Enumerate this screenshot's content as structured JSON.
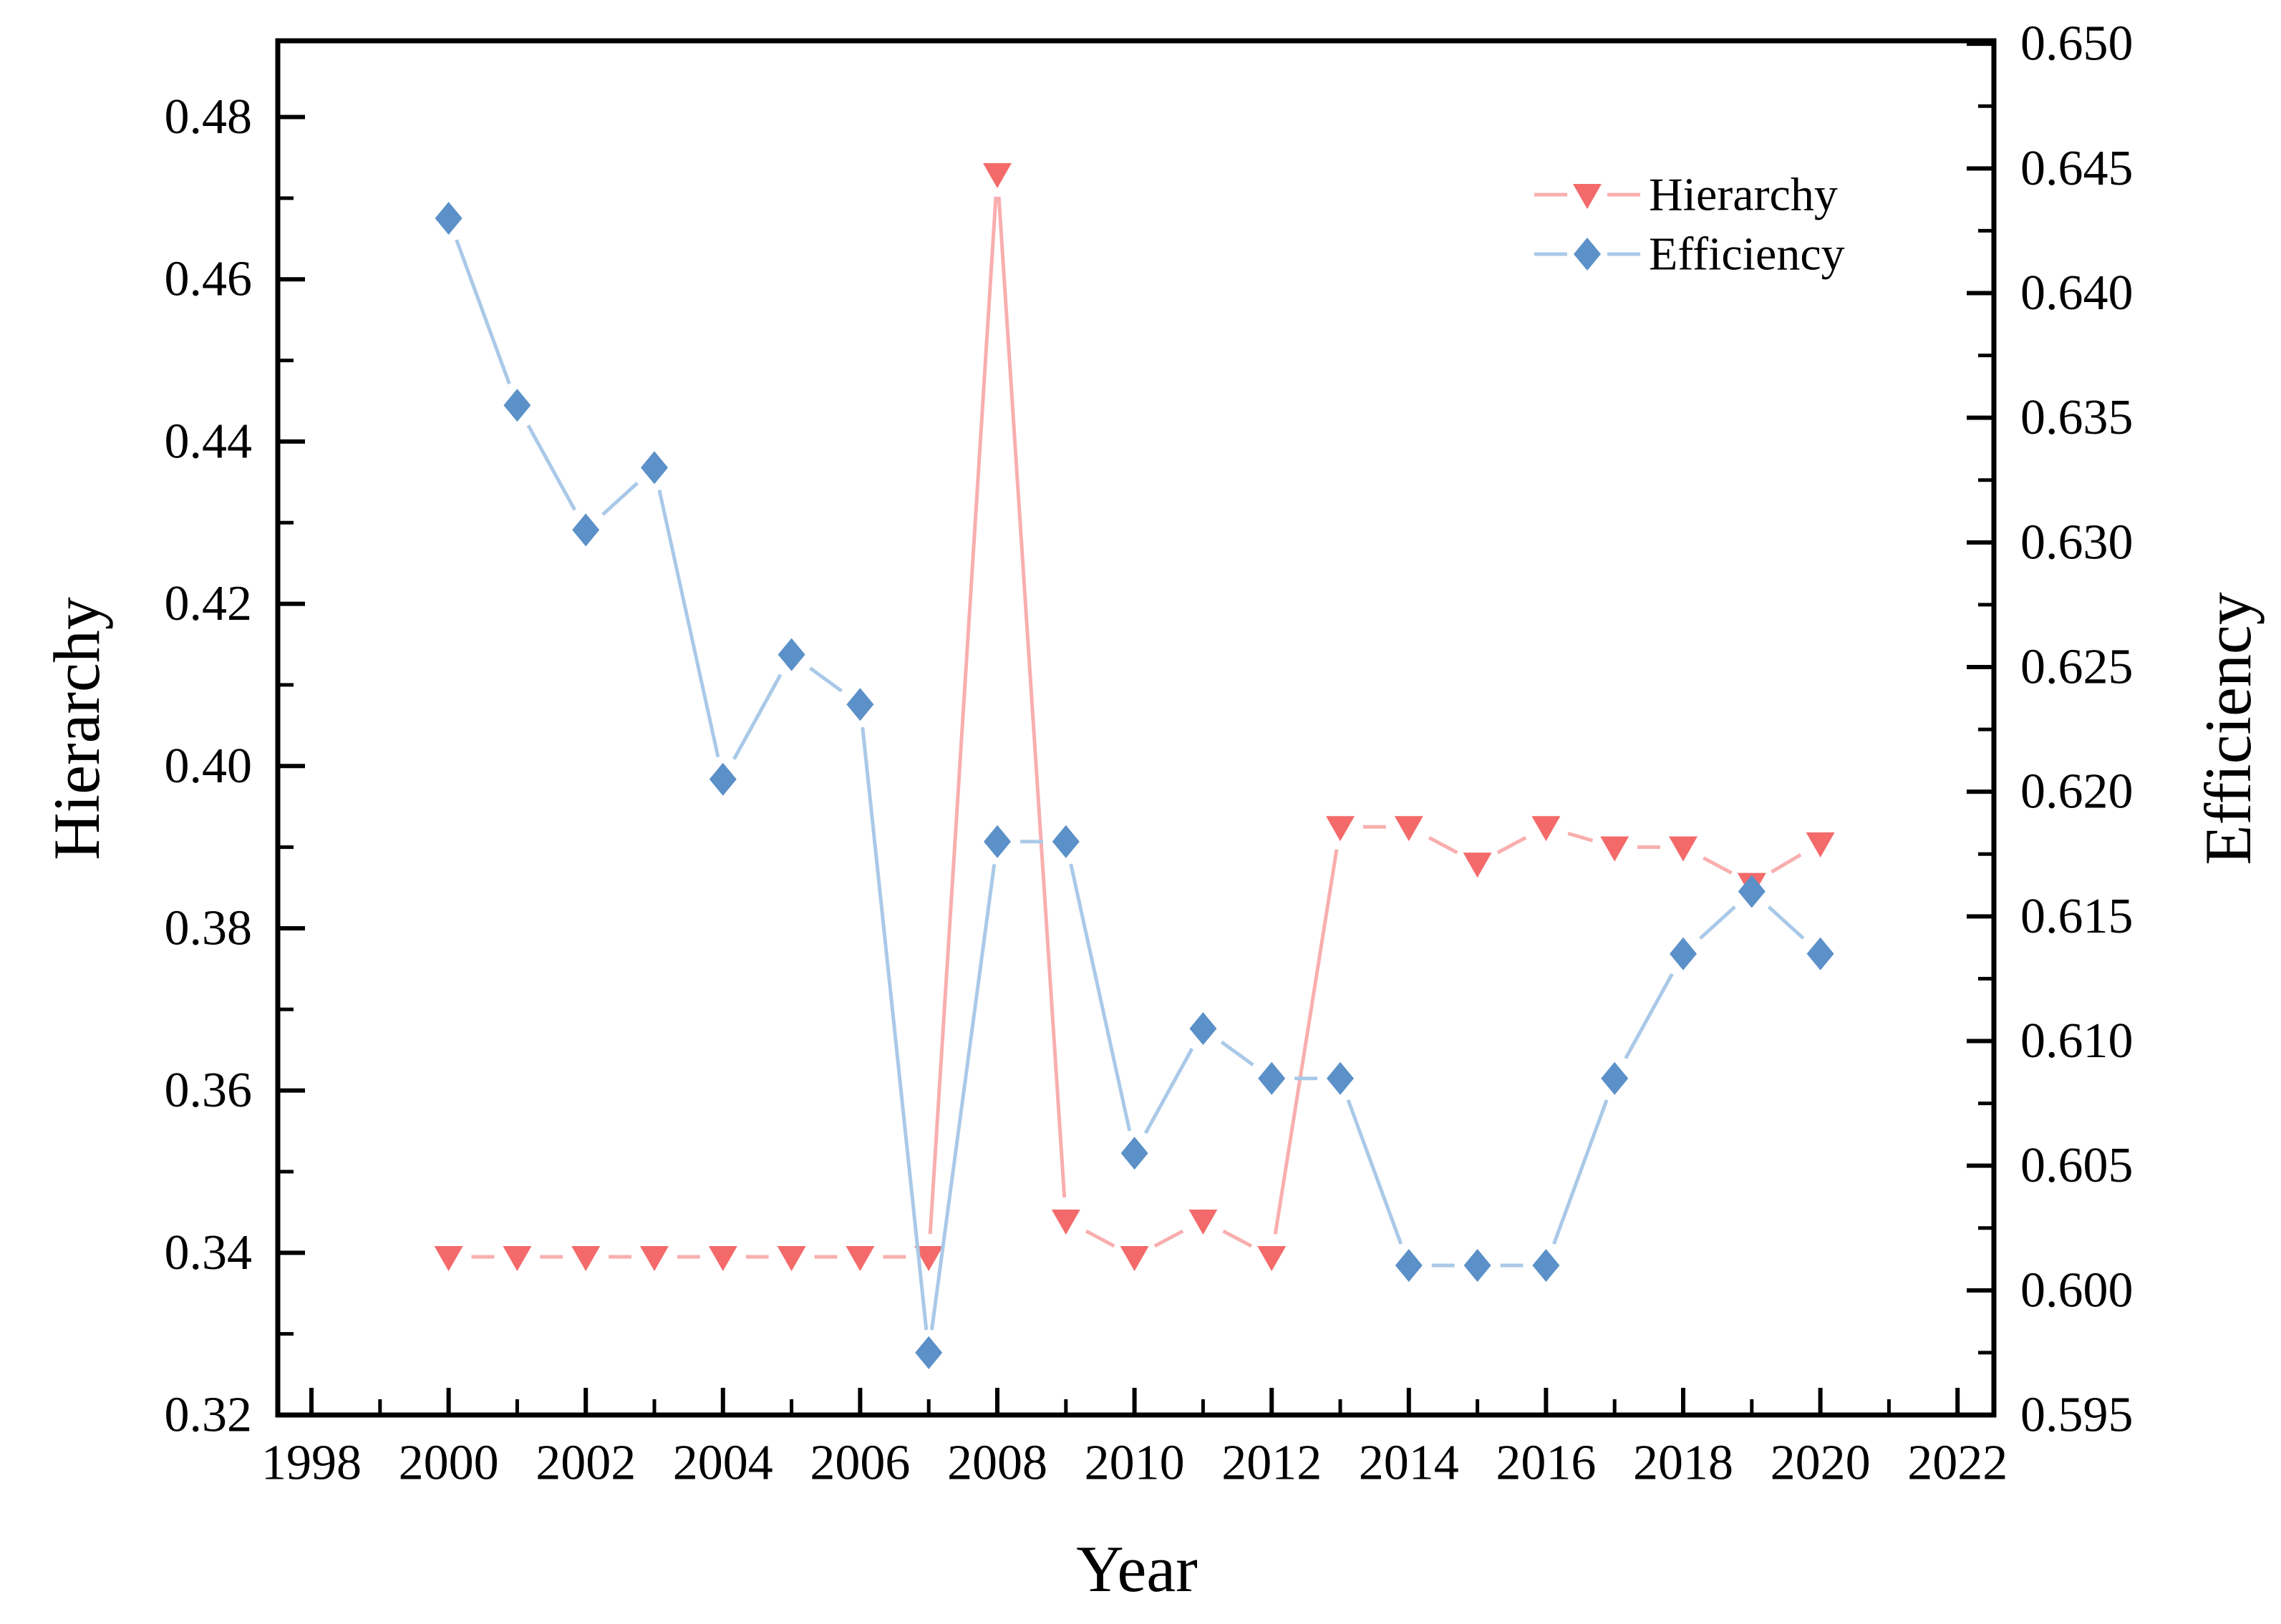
{
  "chart_data": {
    "type": "line",
    "title": "",
    "xlabel": "Year",
    "x": [
      2000,
      2001,
      2002,
      2003,
      2004,
      2005,
      2006,
      2007,
      2008,
      2009,
      2010,
      2011,
      2012,
      2013,
      2014,
      2015,
      2016,
      2017,
      2018,
      2019,
      2020
    ],
    "x_ticks_major": [
      1998,
      2000,
      2002,
      2004,
      2006,
      2008,
      2010,
      2012,
      2014,
      2016,
      2018,
      2020,
      2022
    ],
    "x_ticks_minor": [
      1999,
      2001,
      2003,
      2005,
      2007,
      2009,
      2011,
      2013,
      2015,
      2017,
      2019,
      2021
    ],
    "axes": {
      "left": {
        "label": "Hierarchy",
        "ticks_major": [
          0.32,
          0.34,
          0.36,
          0.38,
          0.4,
          0.42,
          0.44,
          0.46,
          0.48
        ],
        "ticks_minor": [
          0.33,
          0.35,
          0.37,
          0.39,
          0.41,
          0.43,
          0.45,
          0.47
        ],
        "decimals": 2,
        "lim": [
          0.32,
          0.4894
        ]
      },
      "right": {
        "label": "Efficiency",
        "ticks_major": [
          0.595,
          0.6,
          0.605,
          0.61,
          0.615,
          0.62,
          0.625,
          0.63,
          0.635,
          0.64,
          0.645,
          0.65
        ],
        "ticks_minor": [
          0.5975,
          0.6025,
          0.6075,
          0.6125,
          0.6175,
          0.6225,
          0.6275,
          0.6325,
          0.6375,
          0.6425,
          0.6475
        ],
        "decimals": 3,
        "lim": [
          0.595,
          0.65012
        ]
      }
    },
    "series": [
      {
        "name": "Hierarchy",
        "axis": "left",
        "marker": "triangle-down",
        "color": "#f46a6a",
        "line_color": "#f9aeae",
        "values": [
          0.3395,
          0.3395,
          0.3395,
          0.3395,
          0.3395,
          0.3395,
          0.3395,
          0.3395,
          0.473,
          0.344,
          0.3395,
          0.344,
          0.3395,
          0.3925,
          0.3925,
          0.388,
          0.3925,
          0.39,
          0.39,
          0.3855,
          0.3905
        ]
      },
      {
        "name": "Efficiency",
        "axis": "right",
        "marker": "diamond",
        "color": "#5b90c8",
        "line_color": "#aac9e8",
        "values": [
          0.643,
          0.6355,
          0.6305,
          0.633,
          0.6205,
          0.6255,
          0.6235,
          0.5975,
          0.618,
          0.618,
          0.6055,
          0.6105,
          0.6085,
          0.6085,
          0.601,
          0.601,
          0.601,
          0.6085,
          0.6135,
          0.616,
          0.6135
        ]
      }
    ],
    "legend": {
      "position": "top-right",
      "items": [
        "Hierarchy",
        "Efficiency"
      ]
    }
  }
}
